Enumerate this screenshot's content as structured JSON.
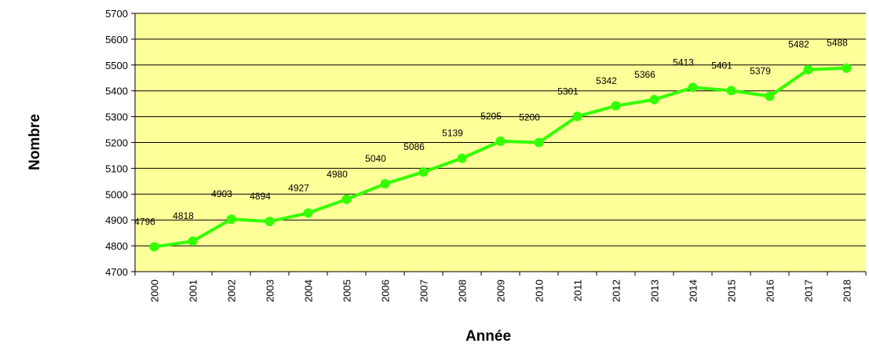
{
  "chart_data": {
    "type": "line",
    "x_label": "Année",
    "y_label": "Nombre",
    "categories": [
      "2000",
      "2001",
      "2002",
      "2003",
      "2004",
      "2005",
      "2006",
      "2007",
      "2008",
      "2009",
      "2010",
      "2011",
      "2012",
      "2013",
      "2014",
      "2015",
      "2016",
      "2017",
      "2018"
    ],
    "series": [
      {
        "name": "Nombre",
        "color": "#33ff00",
        "values": [
          4796,
          4818,
          4903,
          4894,
          4927,
          4980,
          5040,
          5086,
          5139,
          5205,
          5200,
          5301,
          5342,
          5366,
          5413,
          5401,
          5379,
          5482,
          5488
        ]
      }
    ],
    "ylim": [
      4700,
      5700
    ],
    "yticks": [
      4700,
      4800,
      4900,
      5000,
      5100,
      5200,
      5300,
      5400,
      5500,
      5600,
      5700
    ],
    "grid": true,
    "background": "#ffff99"
  }
}
